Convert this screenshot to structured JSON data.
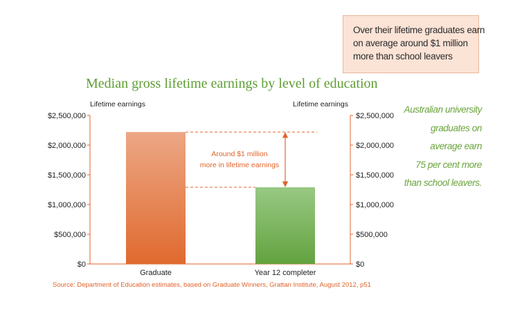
{
  "callout": {
    "lines": [
      "Over their lifetime graduates earn",
      "on average around $1 million",
      "more than school leavers"
    ]
  },
  "side_note": {
    "lines": [
      "Australian university",
      "graduates on",
      "average earn",
      "75  per  cent more",
      "than school leavers."
    ]
  },
  "source": "Source: Department of Education estimates, based on Graduate Winners, Grattan Institute, August 2012, p51",
  "colors": {
    "graduate_bar_top": "#eca785",
    "graduate_bar_bottom": "#e06a2f",
    "year12_bar_top": "#98c984",
    "year12_bar_bottom": "#63a23f",
    "accent_orange": "#e0632a",
    "title_green": "#5e9e33"
  },
  "chart_data": {
    "type": "bar",
    "title": "Median gross lifetime earnings by level of education",
    "ylabel_left": "Lifetime earnings",
    "ylabel_right": "Lifetime earnings",
    "categories": [
      "Graduate",
      "Year 12 completer"
    ],
    "values": [
      2220000,
      1290000
    ],
    "ylim": [
      0,
      2500000
    ],
    "yticks": [
      0,
      500000,
      1000000,
      1500000,
      2000000,
      2500000
    ],
    "ytick_labels": [
      "$0",
      "$500,000",
      "$1,000,000",
      "$1,500,000",
      "$2,000,000",
      "$2,500,000"
    ],
    "annotation": [
      "Around $1 million",
      "more in lifetime earnings"
    ],
    "grid": false,
    "legend": "none"
  }
}
